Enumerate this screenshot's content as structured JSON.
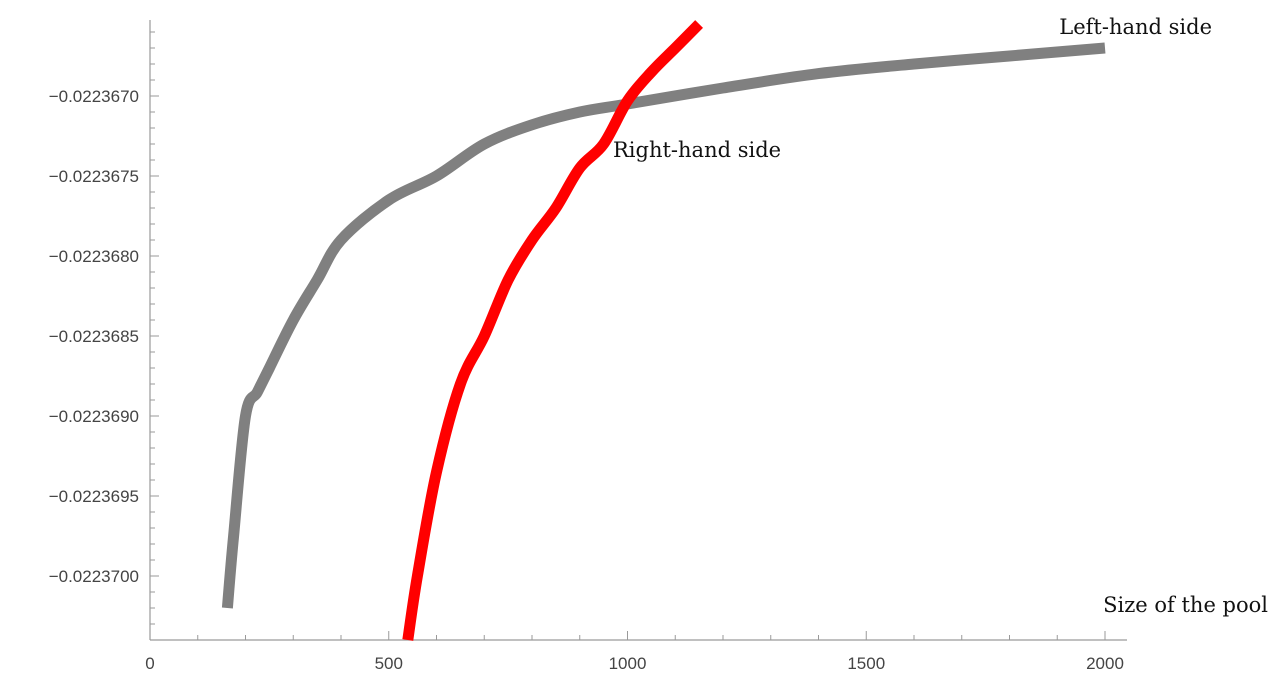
{
  "chart_data": {
    "type": "line",
    "title": "",
    "xlabel": "Size of the pool",
    "ylabel": "",
    "xlim": [
      0,
      2050
    ],
    "ylim": [
      -0.0223704,
      -0.02236625
    ],
    "grid": false,
    "legend": "none",
    "x_ticks": [
      {
        "value": 0,
        "label": "0"
      },
      {
        "value": 500,
        "label": "500"
      },
      {
        "value": 1000,
        "label": "1000"
      },
      {
        "value": 1500,
        "label": "1500"
      },
      {
        "value": 2000,
        "label": "2000"
      }
    ],
    "y_ticks": [
      {
        "value": -0.022367,
        "label": "−0.0223670"
      },
      {
        "value": -0.0223675,
        "label": "−0.0223675"
      },
      {
        "value": -0.022368,
        "label": "−0.0223680"
      },
      {
        "value": -0.0223685,
        "label": "−0.0223685"
      },
      {
        "value": -0.022369,
        "label": "−0.0223690"
      },
      {
        "value": -0.0223695,
        "label": "−0.0223695"
      },
      {
        "value": -0.02237,
        "label": "−0.0223700"
      }
    ],
    "series": [
      {
        "name": "Left-hand side",
        "color": "#808080",
        "x": [
          162,
          175,
          200,
          225,
          250,
          300,
          350,
          400,
          500,
          600,
          700,
          800,
          900,
          1000,
          1200,
          1400,
          1600,
          1800,
          2000
        ],
        "y": [
          -0.0223702,
          -0.02236975,
          -0.022369,
          -0.02236885,
          -0.0223687,
          -0.0223684,
          -0.02236815,
          -0.0223679,
          -0.02236765,
          -0.0223675,
          -0.0223673,
          -0.02236718,
          -0.0223671,
          -0.02236705,
          -0.02236695,
          -0.02236686,
          -0.0223668,
          -0.02236675,
          -0.0223667
        ]
      },
      {
        "name": "Right-hand side",
        "color": "#ff0000",
        "x": [
          540,
          560,
          600,
          650,
          700,
          750,
          800,
          850,
          900,
          950,
          1000,
          1050,
          1100,
          1150
        ],
        "y": [
          -0.0223704,
          -0.02237,
          -0.02236935,
          -0.0223688,
          -0.0223685,
          -0.02236815,
          -0.0223679,
          -0.0223677,
          -0.02236745,
          -0.0223673,
          -0.02236703,
          -0.02236685,
          -0.0223667,
          -0.02236655
        ]
      }
    ]
  }
}
